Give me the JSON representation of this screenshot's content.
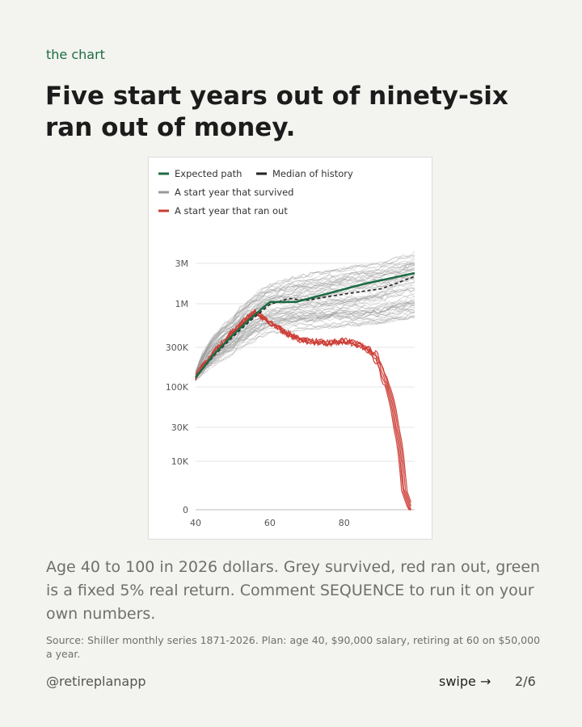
{
  "kicker": "the chart",
  "headline": "Five start years out of ninety-six ran out of money.",
  "caption": "Age 40 to 100 in 2026 dollars. Grey survived, red ran out, green is a fixed 5% real return. Comment SEQUENCE to run it on your own numbers.",
  "source": "Source: Shiller monthly series 1871-2026. Plan: age 40, $90,000 salary, retiring at 60 on $50,000 a year.",
  "footer": {
    "handle": "@retireplanapp",
    "swipe_label": "swipe",
    "swipe_arrow": "→",
    "page": "2/6"
  },
  "colors": {
    "expected": "#1e6b45",
    "median": "#222222",
    "survived": "#999999",
    "ran_out": "#cc3b33"
  },
  "chart_data": {
    "type": "line",
    "title": "",
    "xlabel": "",
    "ylabel": "",
    "x_ticks": [
      {
        "value": 40,
        "label": "40"
      },
      {
        "value": 60,
        "label": "60"
      },
      {
        "value": 80,
        "label": "80"
      }
    ],
    "y_ticks": [
      {
        "value": 0,
        "label": "0"
      },
      {
        "value": 10000,
        "label": "10K"
      },
      {
        "value": 30000,
        "label": "30K"
      },
      {
        "value": 100000,
        "label": "100K"
      },
      {
        "value": 300000,
        "label": "300K"
      },
      {
        "value": 1000000,
        "label": "1M"
      },
      {
        "value": 3000000,
        "label": "3M"
      }
    ],
    "xlim": [
      40,
      99
    ],
    "y_scale": "log (symlog near 0)",
    "grid": "horizontal",
    "legend": [
      {
        "key": "expected",
        "label": "Expected path",
        "style": "solid"
      },
      {
        "key": "median",
        "label": "Median of history",
        "style": "dashed"
      },
      {
        "key": "survived",
        "label": "A start year that survived",
        "style": "solid"
      },
      {
        "key": "ran_out",
        "label": "A start year that ran out",
        "style": "solid"
      }
    ],
    "legend_placement": "top-left",
    "series": [
      {
        "key": "expected",
        "x": [
          40,
          45,
          50,
          55,
          60,
          67,
          75,
          85,
          99
        ],
        "y": [
          130000,
          250000,
          420000,
          680000,
          1050000,
          1050000,
          1300000,
          1700000,
          2300000
        ]
      },
      {
        "key": "median",
        "x": [
          40,
          45,
          50,
          55,
          60,
          65,
          70,
          75,
          80,
          85,
          90,
          95,
          99
        ],
        "y": [
          130000,
          240000,
          400000,
          640000,
          980000,
          1150000,
          1100000,
          1200000,
          1300000,
          1400000,
          1500000,
          1800000,
          2100000
        ]
      },
      {
        "key": "ran_out",
        "x": [
          40,
          44,
          48,
          52,
          56,
          60,
          64,
          68,
          72,
          76,
          80,
          84,
          88,
          91,
          94,
          96,
          98
        ],
        "y": [
          130000,
          230000,
          360000,
          560000,
          780000,
          600000,
          450000,
          370000,
          350000,
          340000,
          360000,
          320000,
          250000,
          120000,
          30000,
          3000,
          0
        ]
      },
      {
        "key": "survived_envelope",
        "x": [
          40,
          50,
          60,
          70,
          80,
          90,
          99
        ],
        "y_low": [
          120000,
          250000,
          450000,
          500000,
          550000,
          600000,
          700000
        ],
        "y_high": [
          150000,
          700000,
          1700000,
          2200000,
          2600000,
          3000000,
          4000000
        ]
      }
    ]
  }
}
